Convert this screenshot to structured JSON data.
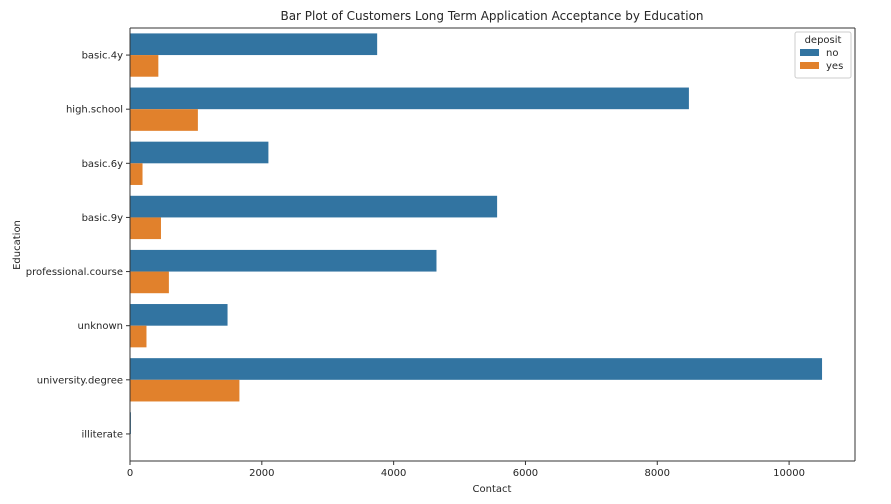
{
  "chart_data": {
    "type": "bar",
    "orientation": "horizontal",
    "title": "Bar Plot of Customers Long Term Application Acceptance by Education",
    "xlabel": "Contact",
    "ylabel": "Education",
    "xlim": [
      0,
      11000
    ],
    "xticks": [
      0,
      2000,
      4000,
      6000,
      8000,
      10000
    ],
    "categories": [
      "basic.4y",
      "high.school",
      "basic.6y",
      "basic.9y",
      "professional.course",
      "unknown",
      "university.degree",
      "illiterate"
    ],
    "series": [
      {
        "name": "no",
        "color": "#3274a1",
        "values": [
          3750,
          8480,
          2100,
          5570,
          4650,
          1480,
          10500,
          14
        ]
      },
      {
        "name": "yes",
        "color": "#e1812c",
        "values": [
          430,
          1030,
          190,
          470,
          590,
          250,
          1660,
          4
        ]
      }
    ],
    "legend": {
      "title": "deposit",
      "placement": "top-right"
    },
    "grid": false
  }
}
